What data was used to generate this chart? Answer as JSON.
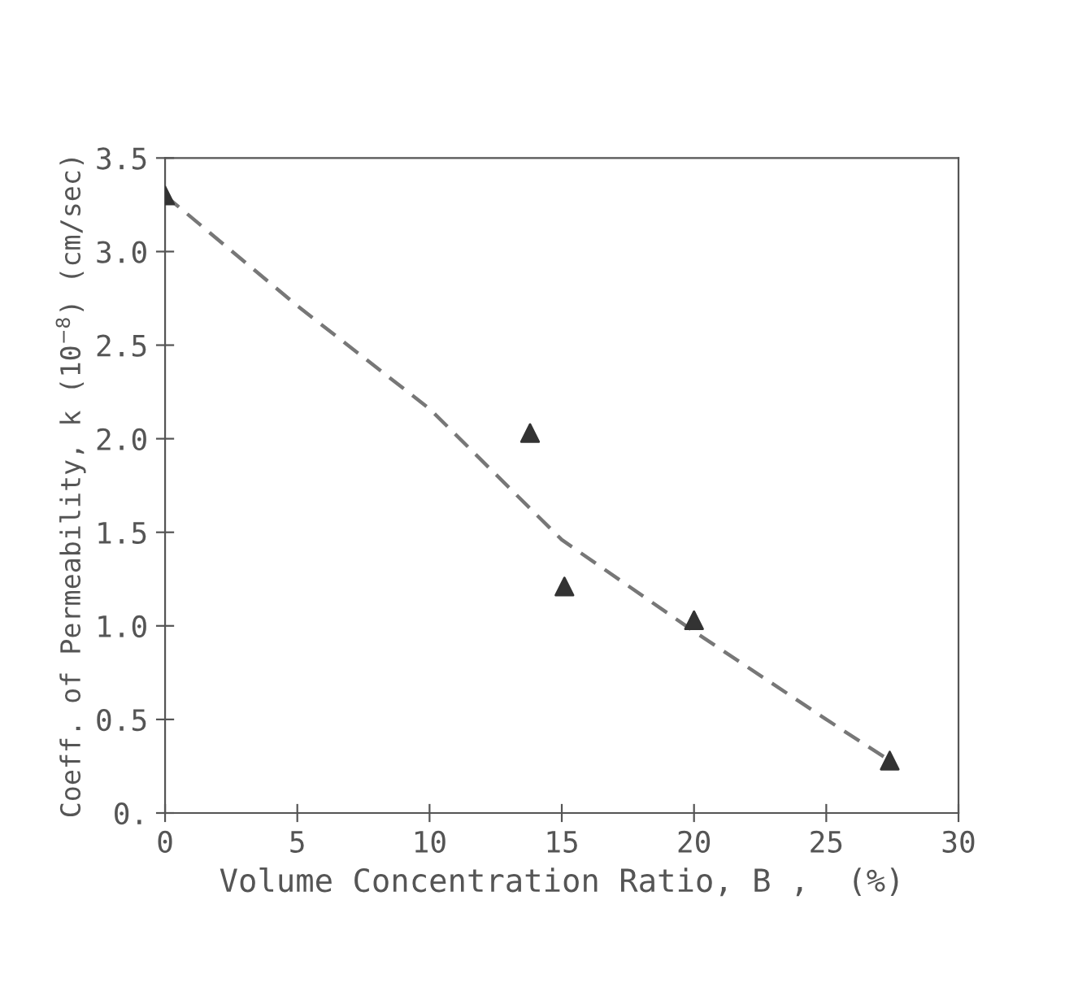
{
  "chart_data": {
    "type": "scatter",
    "xlabel": "Volume Concentration Ratio, B ,  (%)",
    "ylabel": "Coeff. of Permeability, k (10$^{−8}$) (cm/sec)",
    "xlim": [
      0,
      30
    ],
    "ylim": [
      0,
      3.5
    ],
    "xticks": [
      0,
      5,
      10,
      15,
      20,
      25,
      30
    ],
    "yticks": [
      {
        "value": 0,
        "label": "0."
      },
      0.5,
      {
        "value": 1,
        "label": "1.0"
      },
      1.5,
      {
        "value": 2,
        "label": "2.0"
      },
      2.5,
      {
        "value": 3,
        "label": "3.0"
      },
      3.5
    ],
    "grid": false,
    "legend": false,
    "series": [
      {
        "color": "#333333",
        "marker": "triangle",
        "x": [
          0,
          13.8,
          15.1,
          20,
          27.4
        ],
        "values": [
          3.3,
          2.03,
          1.21,
          1.03,
          0.28
        ]
      },
      {
        "type": "line",
        "color": "#777777",
        "line_style": "dashed",
        "marker": "none",
        "x": [
          0,
          5,
          10,
          15,
          20,
          25,
          27.4
        ],
        "values": [
          3.3,
          2.71,
          2.16,
          1.46,
          0.97,
          0.5,
          0.28
        ]
      }
    ]
  }
}
